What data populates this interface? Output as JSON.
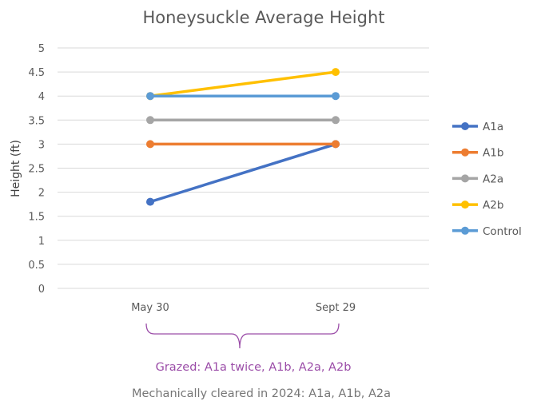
{
  "chart_data": {
    "type": "line",
    "title": "Honeysuckle Average Height",
    "xlabel": "",
    "ylabel": "Height (ft)",
    "categories": [
      "May 30",
      "Sept 29"
    ],
    "ylim": [
      0,
      5
    ],
    "yticks": [
      "0",
      "0.5",
      "1",
      "1.5",
      "2",
      "2.5",
      "3",
      "3.5",
      "4",
      "4.5",
      "5"
    ],
    "grid": true,
    "legend_position": "right",
    "series": [
      {
        "name": "A1a",
        "values": [
          1.8,
          3.0
        ],
        "color": "#4472C4"
      },
      {
        "name": "A1b",
        "values": [
          3.0,
          3.0
        ],
        "color": "#ED7D31"
      },
      {
        "name": "A2a",
        "values": [
          3.5,
          3.5
        ],
        "color": "#A5A5A5"
      },
      {
        "name": "A2b",
        "values": [
          4.0,
          4.5
        ],
        "color": "#FFC000"
      },
      {
        "name": "Control",
        "values": [
          4.0,
          4.0
        ],
        "color": "#5B9BD5"
      }
    ],
    "annotations": {
      "bracket_label": "Grazed: A1a twice, A1b, A2a, A2b",
      "bracket_color": "#9B4DA8",
      "footnote": "Mechanically cleared in 2024: A1a, A1b, A2a"
    }
  }
}
